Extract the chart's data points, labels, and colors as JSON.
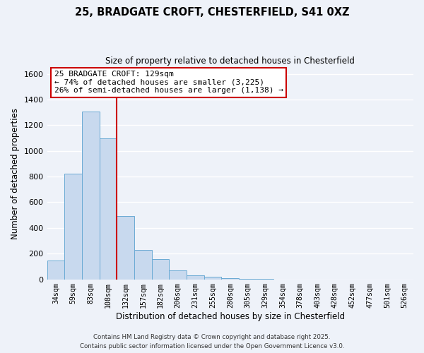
{
  "title": "25, BRADGATE CROFT, CHESTERFIELD, S41 0XZ",
  "subtitle": "Size of property relative to detached houses in Chesterfield",
  "xlabel": "Distribution of detached houses by size in Chesterfield",
  "ylabel": "Number of detached properties",
  "categories": [
    "34sqm",
    "59sqm",
    "83sqm",
    "108sqm",
    "132sqm",
    "157sqm",
    "182sqm",
    "206sqm",
    "231sqm",
    "255sqm",
    "280sqm",
    "305sqm",
    "329sqm",
    "354sqm",
    "378sqm",
    "403sqm",
    "428sqm",
    "452sqm",
    "477sqm",
    "501sqm",
    "526sqm"
  ],
  "values": [
    148,
    825,
    1305,
    1100,
    490,
    230,
    155,
    70,
    30,
    20,
    10,
    3,
    1,
    0,
    0,
    0,
    0,
    0,
    0,
    0,
    0
  ],
  "bar_color": "#c8d9ee",
  "bar_edge_color": "#6aaad4",
  "vline_color": "#cc0000",
  "annotation_text": "25 BRADGATE CROFT: 129sqm\n← 74% of detached houses are smaller (3,225)\n26% of semi-detached houses are larger (1,138) →",
  "annotation_box_color": "#cc0000",
  "ylim": [
    0,
    1650
  ],
  "yticks": [
    0,
    200,
    400,
    600,
    800,
    1000,
    1200,
    1400,
    1600
  ],
  "footnote1": "Contains HM Land Registry data © Crown copyright and database right 2025.",
  "footnote2": "Contains public sector information licensed under the Open Government Licence v3.0.",
  "bg_color": "#eef2f9",
  "grid_color": "#ffffff"
}
